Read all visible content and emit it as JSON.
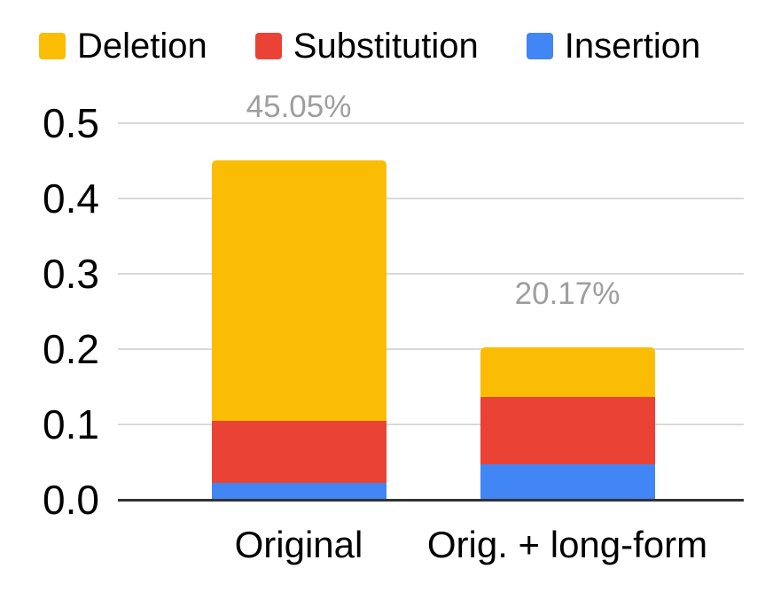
{
  "chart_data": {
    "type": "bar",
    "stacked": true,
    "title": "",
    "xlabel": "",
    "ylabel": "",
    "categories": [
      "Original",
      "Orig. + long-form"
    ],
    "series": [
      {
        "name": "Deletion",
        "color": "#FBBC04",
        "values": [
          0.346,
          0.065
        ]
      },
      {
        "name": "Substitution",
        "color": "#EA4335",
        "values": [
          0.082,
          0.09
        ]
      },
      {
        "name": "Insertion",
        "color": "#4285F4",
        "values": [
          0.0225,
          0.047
        ]
      }
    ],
    "stack_order_bottom_to_top": [
      "Insertion",
      "Substitution",
      "Deletion"
    ],
    "totals_labels": [
      "45.05%",
      "20.17%"
    ],
    "yticks": [
      "0.0",
      "0.1",
      "0.2",
      "0.3",
      "0.4",
      "0.5"
    ],
    "ylim": [
      0,
      0.5
    ],
    "grid": true,
    "legend_position": "top",
    "colors": {
      "grid": "#d9d9d9",
      "axis": "#333333",
      "total_label": "#9e9e9e",
      "text": "#000000",
      "background": "#ffffff"
    }
  }
}
